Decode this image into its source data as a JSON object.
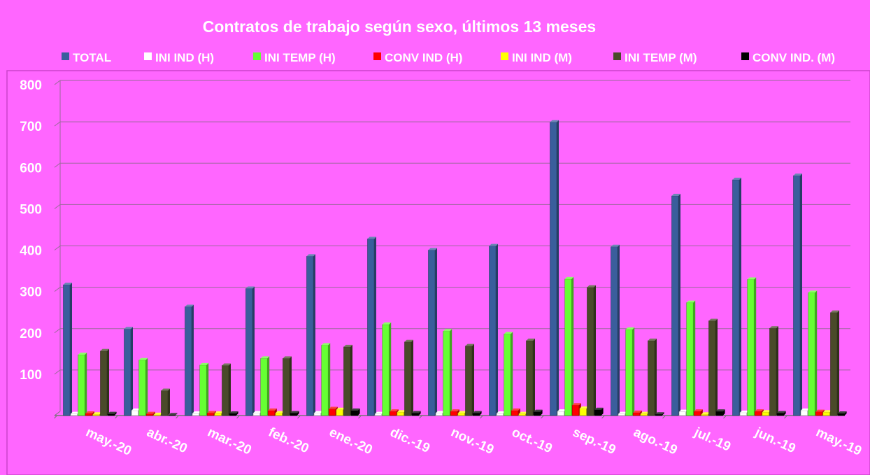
{
  "chart_data": {
    "type": "bar",
    "title": "Contratos de trabajo según sexo, últimos 13 meses",
    "xlabel": "",
    "ylabel": "",
    "ylim": [
      0,
      800
    ],
    "yticks": [
      100,
      200,
      300,
      400,
      500,
      600,
      700,
      800
    ],
    "grid": true,
    "legend_position": "top",
    "categories": [
      "may.-20",
      "abr.-20",
      "mar.-20",
      "feb.-20",
      "ene.-20",
      "dic.-19",
      "nov.-19",
      "oct.-19",
      "sep.-19",
      "ago.-19",
      "jul.-19",
      "jun.-19",
      "may.-19"
    ],
    "series": [
      {
        "name": "TOTAL",
        "color": "#3a5e9c",
        "values": [
          316,
          209,
          263,
          307,
          385,
          427,
          400,
          410,
          709,
          408,
          531,
          570,
          580
        ]
      },
      {
        "name": "INI IND (H)",
        "color": "#ffffff",
        "values": [
          4,
          12,
          5,
          6,
          6,
          4,
          6,
          5,
          10,
          4,
          9,
          7,
          12
        ]
      },
      {
        "name": "INI TEMP (H)",
        "color": "#66ff33",
        "values": [
          147,
          134,
          122,
          138,
          170,
          220,
          204,
          197,
          330,
          208,
          273,
          329,
          297
        ]
      },
      {
        "name": "CONV IND (H)",
        "color": "#ff0000",
        "values": [
          5,
          4,
          6,
          12,
          16,
          10,
          10,
          12,
          25,
          7,
          10,
          10,
          9
        ]
      },
      {
        "name": "INI IND (M)",
        "color": "#ffff00",
        "values": [
          3,
          2,
          5,
          6,
          14,
          8,
          6,
          4,
          17,
          4,
          3,
          8,
          8
        ]
      },
      {
        "name": "INI TEMP  (M)",
        "color": "#4a4a2a",
        "values": [
          156,
          60,
          121,
          138,
          166,
          178,
          168,
          181,
          310,
          181,
          229,
          211,
          249
        ]
      },
      {
        "name": "CONV IND.  (M)",
        "color": "#000000",
        "values": [
          4,
          1,
          5,
          6,
          12,
          6,
          6,
          9,
          14,
          3,
          10,
          6,
          5
        ]
      }
    ]
  }
}
